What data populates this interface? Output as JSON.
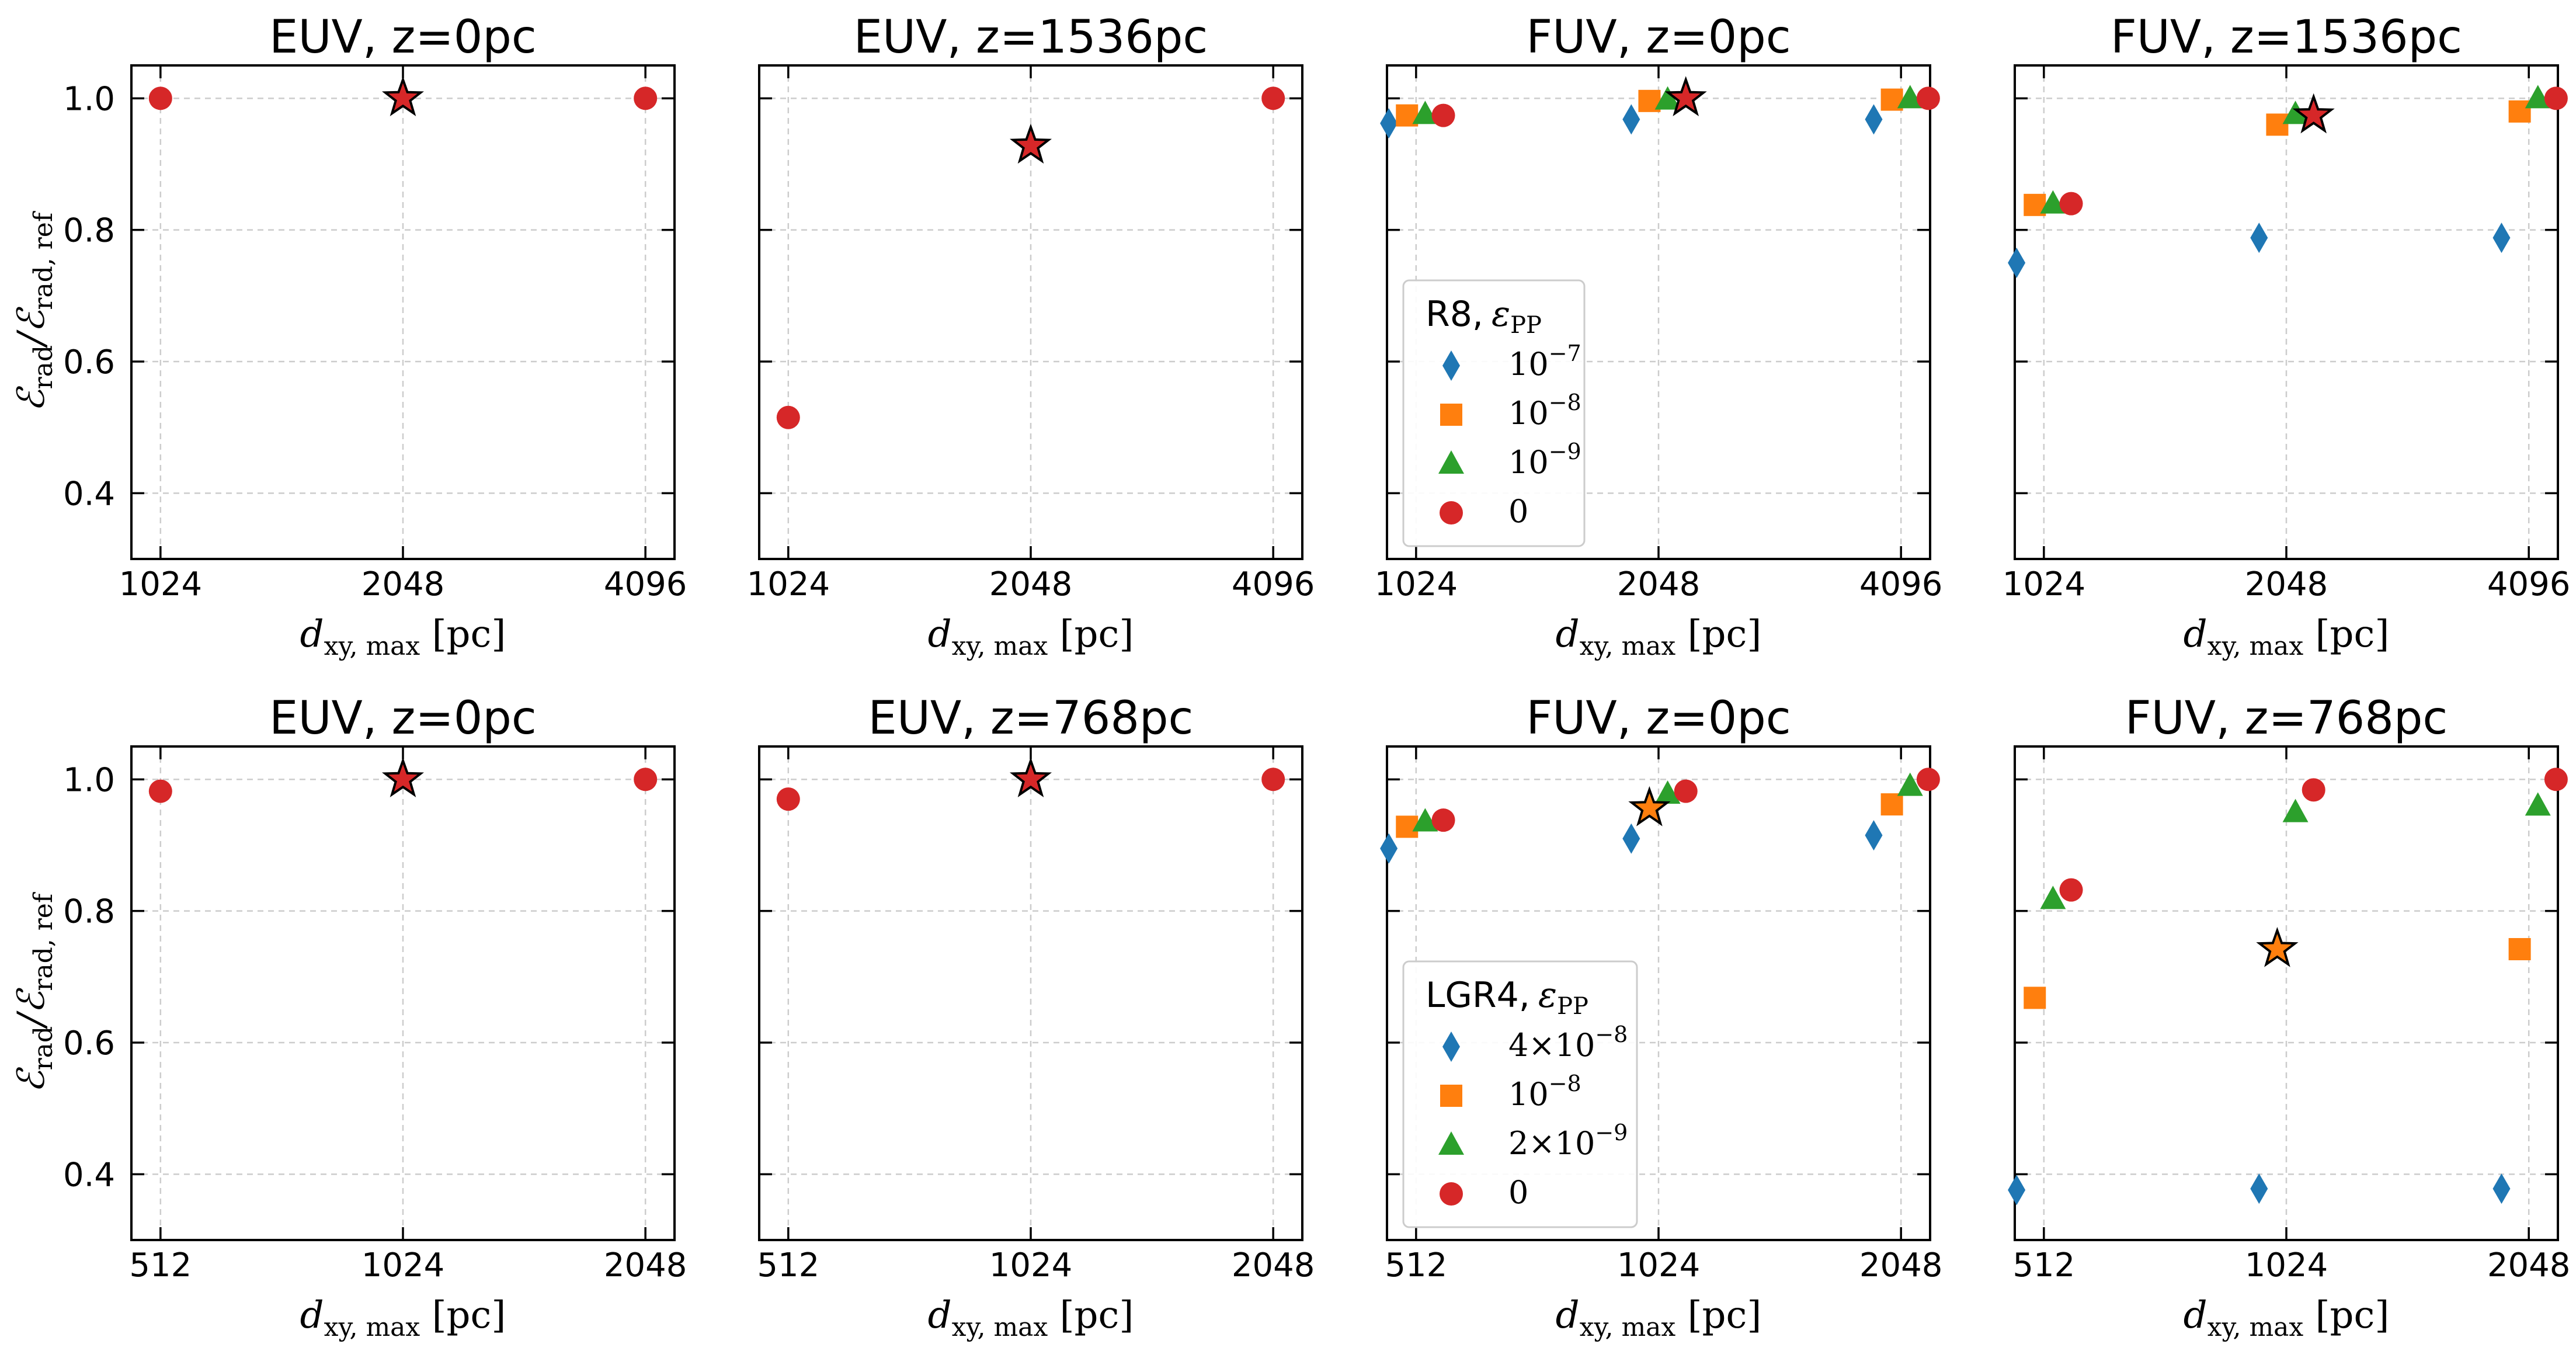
{
  "colors": {
    "series_1": "#1f77b4",
    "series_2": "#ff7f0e",
    "series_3": "#2ca02c",
    "series_4": "#d62728",
    "grid": "#cccccc"
  },
  "icons": {
    "diamond": "diamond-marker",
    "square": "square-marker",
    "triangle": "triangle-up-marker",
    "circle": "circle-marker",
    "star": "star-marker-reference"
  },
  "chart_data": [
    {
      "type": "scatter",
      "title": "EUV, z=0pc",
      "xlabel": "d_xy,max [pc]",
      "ylabel": "E_rad/E_rad,ref",
      "x_scale": "log2",
      "xticks": [
        1024,
        2048,
        4096
      ],
      "yticks": [
        0.4,
        0.6,
        0.8,
        1.0
      ],
      "ylim": [
        0.3,
        1.05
      ],
      "grid": true,
      "series": [
        {
          "marker": "circle",
          "color": "#d62728",
          "x": [
            1024,
            2048,
            4096
          ],
          "y": [
            1.0,
            1.0,
            1.0
          ]
        }
      ],
      "reference": {
        "x": 2048,
        "y": 1.0,
        "marker": "star",
        "color": "#d62728"
      }
    },
    {
      "type": "scatter",
      "title": "EUV, z=1536pc",
      "xlabel": "d_xy,max [pc]",
      "x_scale": "log2",
      "xticks": [
        1024,
        2048,
        4096
      ],
      "ylim": [
        0.3,
        1.05
      ],
      "grid": true,
      "series": [
        {
          "marker": "circle",
          "color": "#d62728",
          "x": [
            1024,
            4096
          ],
          "y": [
            0.515,
            1.0
          ]
        }
      ],
      "reference": {
        "x": 2048,
        "y": 0.928,
        "marker": "star",
        "color": "#d62728"
      }
    },
    {
      "type": "scatter",
      "title": "FUV, z=0pc",
      "xlabel": "d_xy,max [pc]",
      "x_scale": "log2",
      "xticks": [
        1024,
        2048,
        4096
      ],
      "ylim": [
        0.3,
        1.05
      ],
      "grid": true,
      "legend": {
        "title_prefix": "R8,",
        "title_math": "εPP",
        "placement": "lower-left",
        "entries": [
          "10−7",
          "10−8",
          "10−9",
          "0"
        ]
      },
      "series": [
        {
          "marker": "diamond",
          "color": "#1f77b4",
          "x": [
            1024,
            2048,
            4096
          ],
          "y": [
            0.962,
            0.968,
            0.968
          ]
        },
        {
          "marker": "square",
          "color": "#ff7f0e",
          "x": [
            1024,
            2048,
            4096
          ],
          "y": [
            0.974,
            0.996,
            0.998
          ]
        },
        {
          "marker": "triangle",
          "color": "#2ca02c",
          "x": [
            1024,
            2048,
            4096
          ],
          "y": [
            0.976,
            0.998,
            1.0
          ]
        },
        {
          "marker": "circle",
          "color": "#d62728",
          "x": [
            1024,
            2048,
            4096
          ],
          "y": [
            0.974,
            1.0,
            1.0
          ]
        }
      ],
      "reference": {
        "x": 2048,
        "y": 1.0,
        "marker": "star",
        "color": "#d62728",
        "series_index": 3
      }
    },
    {
      "type": "scatter",
      "title": "FUV, z=1536pc",
      "xlabel": "d_xy,max [pc]",
      "x_scale": "log2",
      "xticks": [
        1024,
        2048,
        4096
      ],
      "ylim": [
        0.3,
        1.05
      ],
      "grid": true,
      "series": [
        {
          "marker": "diamond",
          "color": "#1f77b4",
          "x": [
            1024,
            2048,
            4096
          ],
          "y": [
            0.75,
            0.788,
            0.788
          ]
        },
        {
          "marker": "square",
          "color": "#ff7f0e",
          "x": [
            1024,
            2048,
            4096
          ],
          "y": [
            0.838,
            0.96,
            0.98
          ]
        },
        {
          "marker": "triangle",
          "color": "#2ca02c",
          "x": [
            1024,
            2048,
            4096
          ],
          "y": [
            0.84,
            0.976,
            1.0
          ]
        },
        {
          "marker": "circle",
          "color": "#d62728",
          "x": [
            1024,
            2048,
            4096
          ],
          "y": [
            0.84,
            0.974,
            1.0
          ]
        }
      ],
      "reference": {
        "x": 2048,
        "y": 0.974,
        "marker": "star",
        "color": "#d62728",
        "series_index": 3
      }
    },
    {
      "type": "scatter",
      "title": "EUV, z=0pc",
      "xlabel": "d_xy,max [pc]",
      "ylabel": "E_rad/E_rad,ref",
      "x_scale": "log2",
      "xticks": [
        512,
        1024,
        2048
      ],
      "yticks": [
        0.4,
        0.6,
        0.8,
        1.0
      ],
      "ylim": [
        0.3,
        1.05
      ],
      "grid": true,
      "series": [
        {
          "marker": "circle",
          "color": "#d62728",
          "x": [
            512,
            2048
          ],
          "y": [
            0.982,
            1.0
          ]
        }
      ],
      "reference": {
        "x": 1024,
        "y": 1.0,
        "marker": "star",
        "color": "#d62728"
      }
    },
    {
      "type": "scatter",
      "title": "EUV, z=768pc",
      "xlabel": "d_xy,max [pc]",
      "x_scale": "log2",
      "xticks": [
        512,
        1024,
        2048
      ],
      "ylim": [
        0.3,
        1.05
      ],
      "grid": true,
      "series": [
        {
          "marker": "circle",
          "color": "#d62728",
          "x": [
            512,
            2048
          ],
          "y": [
            0.97,
            1.0
          ]
        }
      ],
      "reference": {
        "x": 1024,
        "y": 1.0,
        "marker": "star",
        "color": "#d62728"
      }
    },
    {
      "type": "scatter",
      "title": "FUV, z=0pc",
      "xlabel": "d_xy,max [pc]",
      "x_scale": "log2",
      "xticks": [
        512,
        1024,
        2048
      ],
      "ylim": [
        0.3,
        1.05
      ],
      "grid": true,
      "legend": {
        "title_prefix": "LGR4,",
        "title_math": "εPP",
        "placement": "lower-left",
        "entries": [
          "4×10−8",
          "10−8",
          "2×10−9",
          "0"
        ]
      },
      "series": [
        {
          "marker": "diamond",
          "color": "#1f77b4",
          "x": [
            512,
            1024,
            2048
          ],
          "y": [
            0.895,
            0.91,
            0.915
          ]
        },
        {
          "marker": "square",
          "color": "#ff7f0e",
          "x": [
            512,
            1024,
            2048
          ],
          "y": [
            0.928,
            0.956,
            0.962
          ]
        },
        {
          "marker": "triangle",
          "color": "#2ca02c",
          "x": [
            512,
            1024,
            2048
          ],
          "y": [
            0.936,
            0.978,
            0.99
          ]
        },
        {
          "marker": "circle",
          "color": "#d62728",
          "x": [
            512,
            1024,
            2048
          ],
          "y": [
            0.938,
            0.982,
            1.0
          ]
        }
      ],
      "reference": {
        "x": 1024,
        "y": 0.956,
        "marker": "star",
        "color": "#ff7f0e",
        "series_index": 1
      }
    },
    {
      "type": "scatter",
      "title": "FUV, z=768pc",
      "xlabel": "d_xy,max [pc]",
      "x_scale": "log2",
      "xticks": [
        512,
        1024,
        2048
      ],
      "ylim": [
        0.3,
        1.05
      ],
      "grid": true,
      "series": [
        {
          "marker": "diamond",
          "color": "#1f77b4",
          "x": [
            512,
            1024,
            2048
          ],
          "y": [
            0.376,
            0.378,
            0.378
          ]
        },
        {
          "marker": "square",
          "color": "#ff7f0e",
          "x": [
            512,
            1024,
            2048
          ],
          "y": [
            0.668,
            0.742,
            0.742
          ]
        },
        {
          "marker": "triangle",
          "color": "#2ca02c",
          "x": [
            512,
            1024,
            2048
          ],
          "y": [
            0.818,
            0.95,
            0.96
          ]
        },
        {
          "marker": "circle",
          "color": "#d62728",
          "x": [
            512,
            1024,
            2048
          ],
          "y": [
            0.832,
            0.984,
            1.0
          ]
        }
      ],
      "reference": {
        "x": 1024,
        "y": 0.742,
        "marker": "star",
        "color": "#ff7f0e",
        "series_index": 1
      }
    }
  ]
}
